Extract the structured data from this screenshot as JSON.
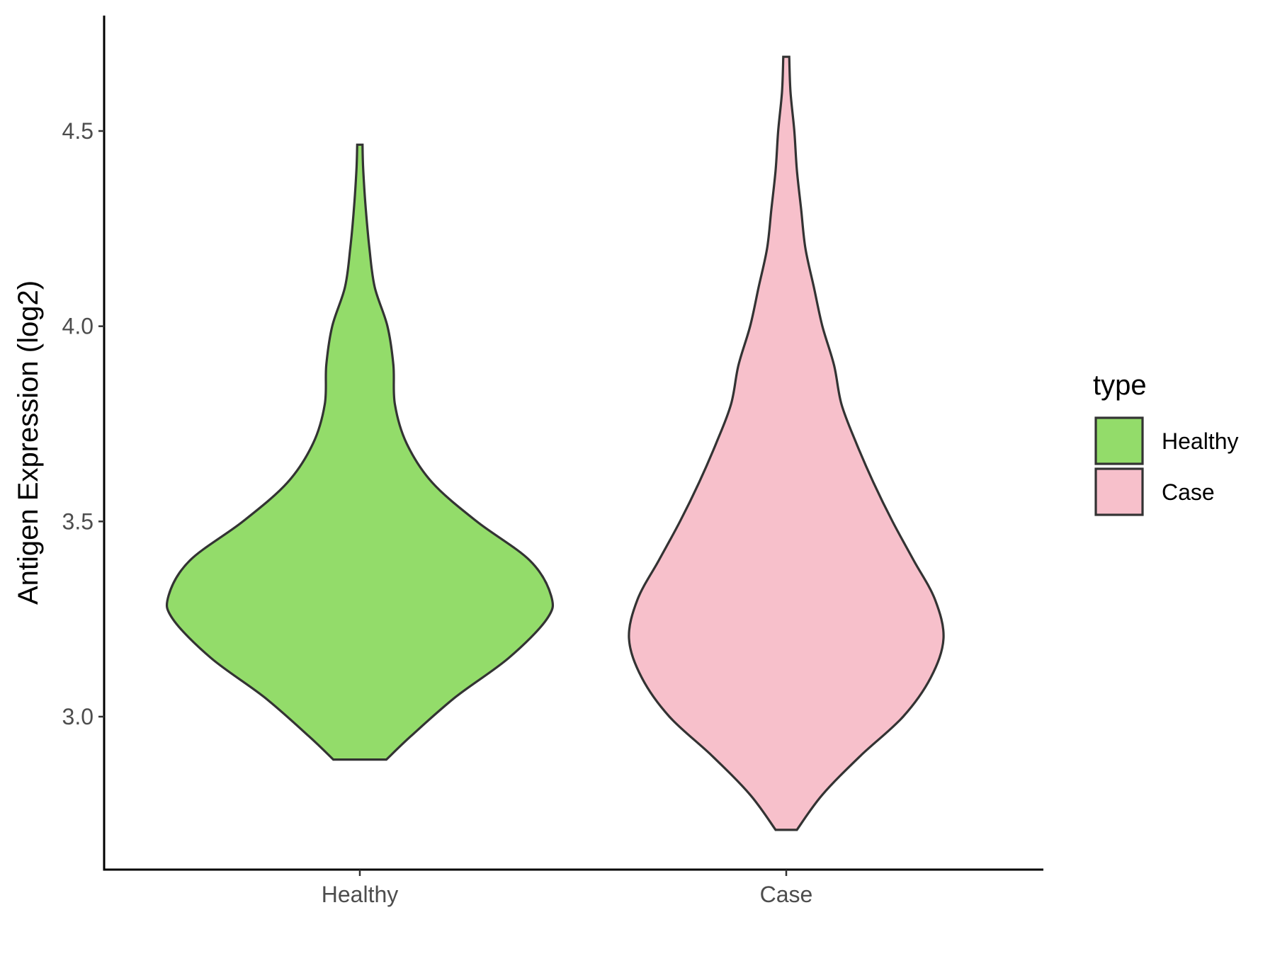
{
  "chart_data": {
    "type": "violin",
    "xlabel": "",
    "ylabel": "Antigen Expression (log2)",
    "categories": [
      "Healthy",
      "Case"
    ],
    "ylim": [
      2.6,
      4.78
    ],
    "yticks": [
      3.0,
      3.5,
      4.0,
      4.5
    ],
    "ytick_labels": [
      "3.0",
      "3.5",
      "4.0",
      "4.5"
    ],
    "legend": {
      "title": "type",
      "position": "right",
      "entries": [
        {
          "label": "Healthy",
          "color": "#93DC6A"
        },
        {
          "label": "Case",
          "color": "#F7C0CB"
        }
      ]
    },
    "grid": false,
    "series": [
      {
        "name": "Healthy",
        "color": "#93DC6A",
        "min": 2.89,
        "max": 4.465,
        "density_profile": [
          [
            2.89,
            0.125
          ],
          [
            2.95,
            0.24
          ],
          [
            3.05,
            0.45
          ],
          [
            3.15,
            0.7
          ],
          [
            3.25,
            0.88
          ],
          [
            3.31,
            0.9
          ],
          [
            3.4,
            0.8
          ],
          [
            3.5,
            0.55
          ],
          [
            3.6,
            0.34
          ],
          [
            3.7,
            0.22
          ],
          [
            3.8,
            0.165
          ],
          [
            3.9,
            0.158
          ],
          [
            4.0,
            0.13
          ],
          [
            4.1,
            0.07
          ],
          [
            4.2,
            0.045
          ],
          [
            4.3,
            0.028
          ],
          [
            4.4,
            0.016
          ],
          [
            4.465,
            0.0125
          ]
        ]
      },
      {
        "name": "Case",
        "color": "#F7C0CB",
        "min": 2.71,
        "max": 4.69,
        "density_profile": [
          [
            2.71,
            0.05
          ],
          [
            2.8,
            0.17
          ],
          [
            2.9,
            0.35
          ],
          [
            3.0,
            0.55
          ],
          [
            3.1,
            0.68
          ],
          [
            3.2,
            0.74
          ],
          [
            3.3,
            0.7
          ],
          [
            3.4,
            0.6
          ],
          [
            3.5,
            0.5
          ],
          [
            3.6,
            0.41
          ],
          [
            3.7,
            0.33
          ],
          [
            3.8,
            0.26
          ],
          [
            3.9,
            0.225
          ],
          [
            4.0,
            0.17
          ],
          [
            4.1,
            0.13
          ],
          [
            4.2,
            0.09
          ],
          [
            4.3,
            0.07
          ],
          [
            4.4,
            0.05
          ],
          [
            4.5,
            0.038
          ],
          [
            4.6,
            0.02
          ],
          [
            4.69,
            0.014
          ]
        ]
      }
    ]
  }
}
